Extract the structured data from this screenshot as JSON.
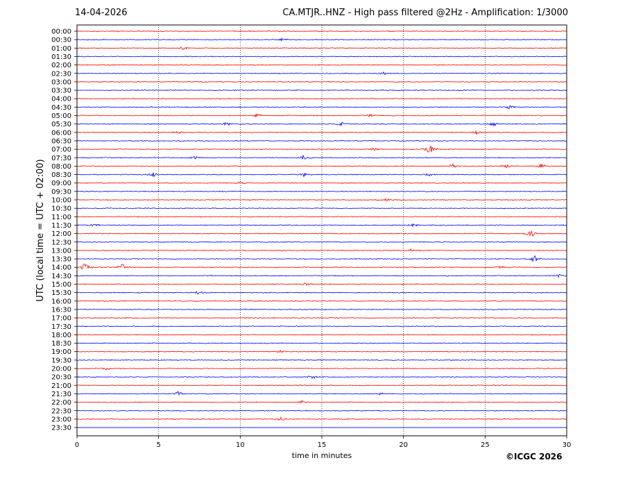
{
  "header": {
    "date": "14-04-2026",
    "title": "CA.MTJR..HNZ - High pass filtered @2Hz - Amplification: 1/3000"
  },
  "footer": {
    "copyright": "©ICGC 2026"
  },
  "colors": {
    "odd_trace": "#ff0000",
    "even_trace": "#0000ff",
    "axis": "#000000",
    "grid": "#000000"
  },
  "chart_data": {
    "type": "line",
    "title": "CA.MTJR..HNZ - High pass filtered @2Hz - Amplification: 1/3000",
    "xlabel": "time in minutes",
    "ylabel": "UTC (local time = UTC + 02:00)",
    "xlim": [
      0,
      30
    ],
    "x_ticks": [
      0,
      5,
      10,
      15,
      20,
      25,
      30
    ],
    "vertical_grid": [
      5,
      10,
      15,
      20,
      25
    ],
    "y_ticks": [
      "00:00",
      "00:30",
      "01:00",
      "01:30",
      "02:00",
      "02:30",
      "03:00",
      "03:30",
      "04:00",
      "04:30",
      "05:00",
      "05:30",
      "06:00",
      "06:30",
      "07:00",
      "07:30",
      "08:00",
      "08:30",
      "09:00",
      "09:30",
      "10:00",
      "10:30",
      "11:00",
      "11:30",
      "12:00",
      "12:30",
      "13:00",
      "13:30",
      "14:00",
      "14:30",
      "15:00",
      "15:30",
      "16:00",
      "16:30",
      "17:00",
      "17:30",
      "18:00",
      "18:30",
      "19:00",
      "19:30",
      "20:00",
      "20:30",
      "21:00",
      "21:30",
      "22:00",
      "22:30",
      "23:00",
      "23:30"
    ],
    "trace_colors": [
      "blue",
      "blue",
      "red",
      "blue"
    ],
    "events": [
      {
        "row": "00:30",
        "minute": 12.6,
        "amplitude": 0.3
      },
      {
        "row": "01:00",
        "minute": 6.5,
        "amplitude": 0.4
      },
      {
        "row": "02:30",
        "minute": 18.8,
        "amplitude": 0.3
      },
      {
        "row": "04:30",
        "minute": 26.5,
        "amplitude": 0.35
      },
      {
        "row": "05:00",
        "minute": 11.0,
        "amplitude": 0.35
      },
      {
        "row": "05:00",
        "minute": 18.0,
        "amplitude": 0.3
      },
      {
        "row": "05:30",
        "minute": 9.2,
        "amplitude": 0.4
      },
      {
        "row": "05:30",
        "minute": 16.2,
        "amplitude": 0.45
      },
      {
        "row": "05:30",
        "minute": 25.5,
        "amplitude": 0.5
      },
      {
        "row": "06:00",
        "minute": 6.2,
        "amplitude": 0.35
      },
      {
        "row": "06:00",
        "minute": 24.5,
        "amplitude": 0.35
      },
      {
        "row": "07:00",
        "minute": 18.2,
        "amplitude": 0.35
      },
      {
        "row": "07:00",
        "minute": 21.6,
        "amplitude": 1.0
      },
      {
        "row": "07:30",
        "minute": 7.2,
        "amplitude": 0.5
      },
      {
        "row": "07:30",
        "minute": 13.9,
        "amplitude": 0.6
      },
      {
        "row": "08:00",
        "minute": 23.0,
        "amplitude": 0.45
      },
      {
        "row": "08:00",
        "minute": 26.3,
        "amplitude": 0.5
      },
      {
        "row": "08:00",
        "minute": 28.5,
        "amplitude": 0.6
      },
      {
        "row": "08:30",
        "minute": 4.7,
        "amplitude": 0.45
      },
      {
        "row": "08:30",
        "minute": 13.9,
        "amplitude": 0.45
      },
      {
        "row": "08:30",
        "minute": 21.6,
        "amplitude": 0.35
      },
      {
        "row": "09:00",
        "minute": 10.0,
        "amplitude": 0.35
      },
      {
        "row": "10:00",
        "minute": 19.0,
        "amplitude": 0.3
      },
      {
        "row": "11:30",
        "minute": 1.1,
        "amplitude": 0.35
      },
      {
        "row": "11:30",
        "minute": 20.6,
        "amplitude": 0.3
      },
      {
        "row": "12:00",
        "minute": 27.8,
        "amplitude": 0.9
      },
      {
        "row": "13:00",
        "minute": 20.4,
        "amplitude": 0.3
      },
      {
        "row": "13:30",
        "minute": 28.0,
        "amplitude": 0.8
      },
      {
        "row": "14:00",
        "minute": 0.5,
        "amplitude": 1.0
      },
      {
        "row": "14:00",
        "minute": 2.8,
        "amplitude": 0.9
      },
      {
        "row": "14:00",
        "minute": 26.0,
        "amplitude": 0.3
      },
      {
        "row": "14:30",
        "minute": 29.5,
        "amplitude": 0.3
      },
      {
        "row": "15:00",
        "minute": 14.0,
        "amplitude": 0.3
      },
      {
        "row": "15:30",
        "minute": 7.4,
        "amplitude": 0.3
      },
      {
        "row": "19:00",
        "minute": 12.5,
        "amplitude": 0.3
      },
      {
        "row": "20:00",
        "minute": 1.8,
        "amplitude": 0.3
      },
      {
        "row": "20:30",
        "minute": 14.4,
        "amplitude": 0.5
      },
      {
        "row": "21:30",
        "minute": 6.2,
        "amplitude": 0.4
      },
      {
        "row": "21:30",
        "minute": 18.6,
        "amplitude": 0.3
      },
      {
        "row": "22:00",
        "minute": 13.8,
        "amplitude": 0.3
      },
      {
        "row": "23:00",
        "minute": 12.5,
        "amplitude": 0.35
      }
    ]
  }
}
